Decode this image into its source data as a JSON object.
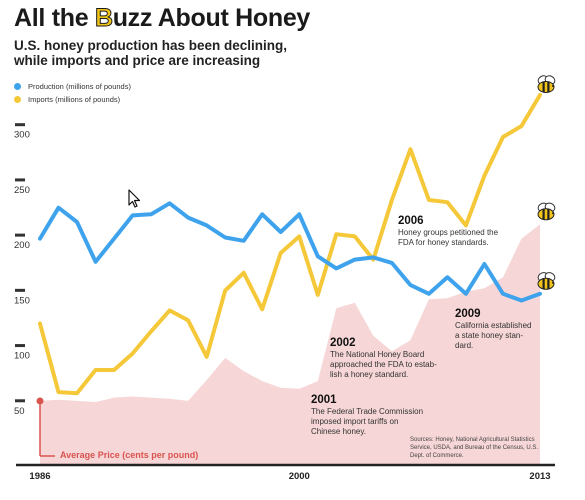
{
  "header": {
    "title_part1": "All the ",
    "title_b": "B",
    "title_part2": "uzz About Honey",
    "subtitle": "U.S. honey production has been declining,\nwhile imports and price are increasing"
  },
  "legend": {
    "production_label": "Production (millions of pounds)",
    "imports_label": "Imports (millions of pounds)"
  },
  "colors": {
    "production": "#3ea3ec",
    "imports": "#f5c83a",
    "price_area": "#f6d6d6",
    "price_marker": "#d9534f"
  },
  "icons": {
    "end_marker": "bee-icon",
    "pointer": "cursor-arrow-icon"
  },
  "annotations": {
    "a2001": {
      "year": "2001",
      "text": "The Federal Trade Commission\nimposed import tariffs on\nChinese honey."
    },
    "a2002": {
      "year": "2002",
      "text": "The National Honey Board\napproached the FDA to estab-\nlish a honey standard."
    },
    "a2006": {
      "year": "2006",
      "text": "Honey groups petitioned the\nFDA for honey standards."
    },
    "a2009": {
      "year": "2009",
      "text": "California established\na state honey stan-\ndard."
    }
  },
  "price_label": "Average Price (cents per pound)",
  "sources": "Sources: Honey, National Agricultural Statistics Service, USDA, and Bureau of the Census, U.S. Dept. of Commerce.",
  "chart_data": {
    "type": "line",
    "x": [
      1986,
      1987,
      1988,
      1989,
      1990,
      1991,
      1992,
      1993,
      1994,
      1995,
      1996,
      1997,
      1998,
      1999,
      2000,
      2001,
      2002,
      2003,
      2004,
      2005,
      2006,
      2007,
      2008,
      2009,
      2010,
      2011,
      2012,
      2013
    ],
    "x_tick_labels": [
      "1986",
      "2000",
      "2013"
    ],
    "y_ticks": [
      50,
      100,
      150,
      200,
      250,
      300
    ],
    "ylim": [
      0,
      345
    ],
    "series": [
      {
        "name": "Production (millions of pounds)",
        "values": [
          205,
          233,
          220,
          184,
          205,
          226,
          227,
          237,
          224,
          217,
          206,
          203,
          227,
          211,
          227,
          189,
          178,
          186,
          188,
          183,
          163,
          155,
          170,
          155,
          182,
          155,
          149,
          155
        ]
      },
      {
        "name": "Imports (millions of pounds)",
        "values": [
          128,
          66,
          65,
          86,
          86,
          101,
          121,
          140,
          131,
          98,
          158,
          174,
          141,
          192,
          207,
          154,
          209,
          207,
          186,
          240,
          286,
          240,
          238,
          217,
          262,
          297,
          307,
          335
        ]
      },
      {
        "name": "Average Price (cents per pound)",
        "values": [
          58,
          59,
          58,
          57,
          61,
          62,
          61,
          60,
          58,
          77,
          97,
          85,
          76,
          70,
          69,
          76,
          142,
          147,
          117,
          103,
          113,
          150,
          151,
          157,
          160,
          170,
          205,
          218
        ]
      }
    ],
    "grid": false,
    "legend_position": "top-left"
  }
}
